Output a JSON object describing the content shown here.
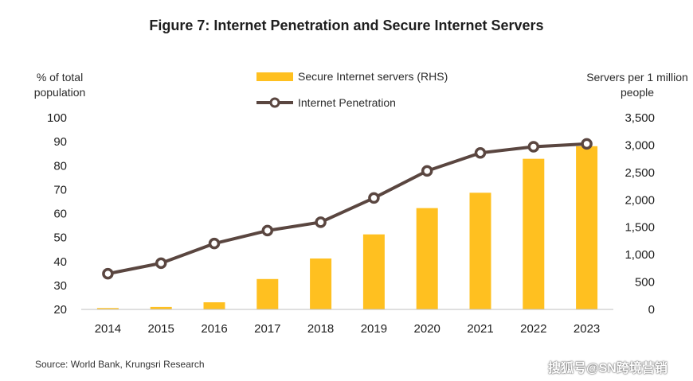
{
  "chart_data": {
    "type": "bar+line",
    "title": "Figure 7: Internet Penetration and Secure Internet Servers",
    "left_axis_label": "% of total population",
    "right_axis_label": "Servers per 1 million people",
    "categories": [
      "2014",
      "2015",
      "2016",
      "2017",
      "2018",
      "2019",
      "2020",
      "2021",
      "2022",
      "2023"
    ],
    "series": [
      {
        "name": "Secure Internet servers (RHS)",
        "type": "bar",
        "axis": "right",
        "color": "#FFC020",
        "values": [
          25,
          45,
          130,
          555,
          930,
          1370,
          1850,
          2130,
          2750,
          2980
        ]
      },
      {
        "name": "Internet Penetration",
        "type": "line",
        "axis": "left",
        "color": "#5A4640",
        "values": [
          34.9,
          39.3,
          47.5,
          52.9,
          56.4,
          66.5,
          77.8,
          85.3,
          87.9,
          89.1
        ]
      }
    ],
    "left_ylim": [
      20,
      100
    ],
    "left_ticks": [
      "20",
      "30",
      "40",
      "50",
      "60",
      "70",
      "80",
      "90",
      "100"
    ],
    "right_ylim": [
      0,
      3500
    ],
    "right_ticks": [
      "0",
      "500",
      "1,000",
      "1,500",
      "2,000",
      "2,500",
      "3,000",
      "3,500"
    ],
    "legend_position": "top-center",
    "grid": false
  },
  "source": "Source: World Bank, Krungsri Research",
  "watermark": "搜狐号@SN跨境营销"
}
